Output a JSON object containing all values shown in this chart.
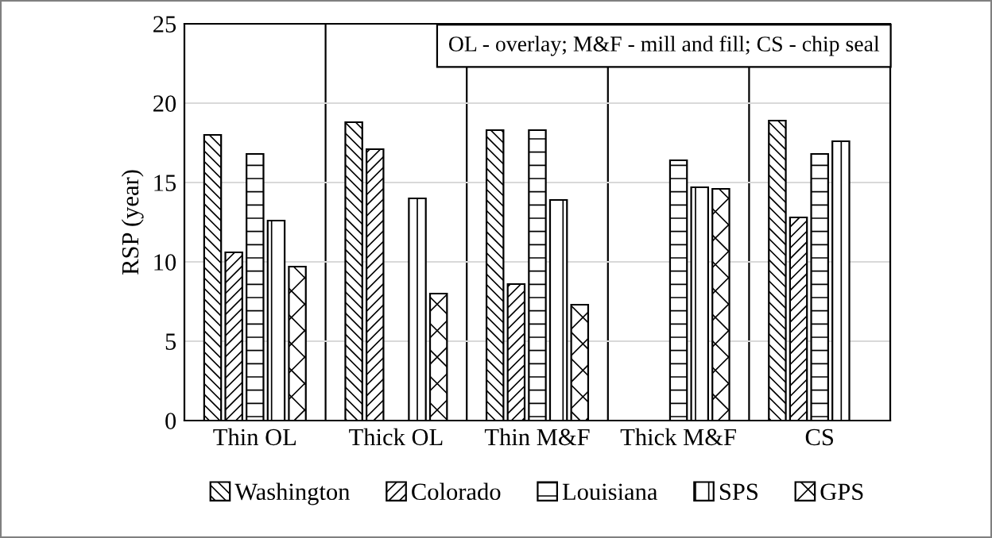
{
  "chart_data": {
    "type": "bar",
    "ylabel": "RSP (year)",
    "categories": [
      "Thin OL",
      "Thick OL",
      "Thin M&F",
      "Thick M&F",
      "CS"
    ],
    "series": [
      {
        "name": "Washington",
        "color": "#000000",
        "values": [
          18.0,
          18.8,
          18.3,
          null,
          18.9
        ]
      },
      {
        "name": "Colorado",
        "color": "#000000",
        "values": [
          10.6,
          17.1,
          8.6,
          null,
          12.8
        ]
      },
      {
        "name": "Louisiana",
        "color": "#000000",
        "values": [
          16.8,
          null,
          18.3,
          16.4,
          16.8
        ]
      },
      {
        "name": "SPS",
        "color": "#000000",
        "values": [
          12.6,
          14.0,
          13.9,
          14.7,
          17.6
        ]
      },
      {
        "name": "GPS",
        "color": "#000000",
        "values": [
          9.7,
          8.0,
          7.3,
          14.6,
          null
        ]
      }
    ],
    "ylim": [
      0,
      25
    ],
    "yticks": [
      0,
      5,
      10,
      15,
      20,
      25
    ],
    "grid": "y",
    "legend": "bottom",
    "annotations": [
      "OL - overlay; M&F - mill and fill; CS - chip seal"
    ]
  }
}
